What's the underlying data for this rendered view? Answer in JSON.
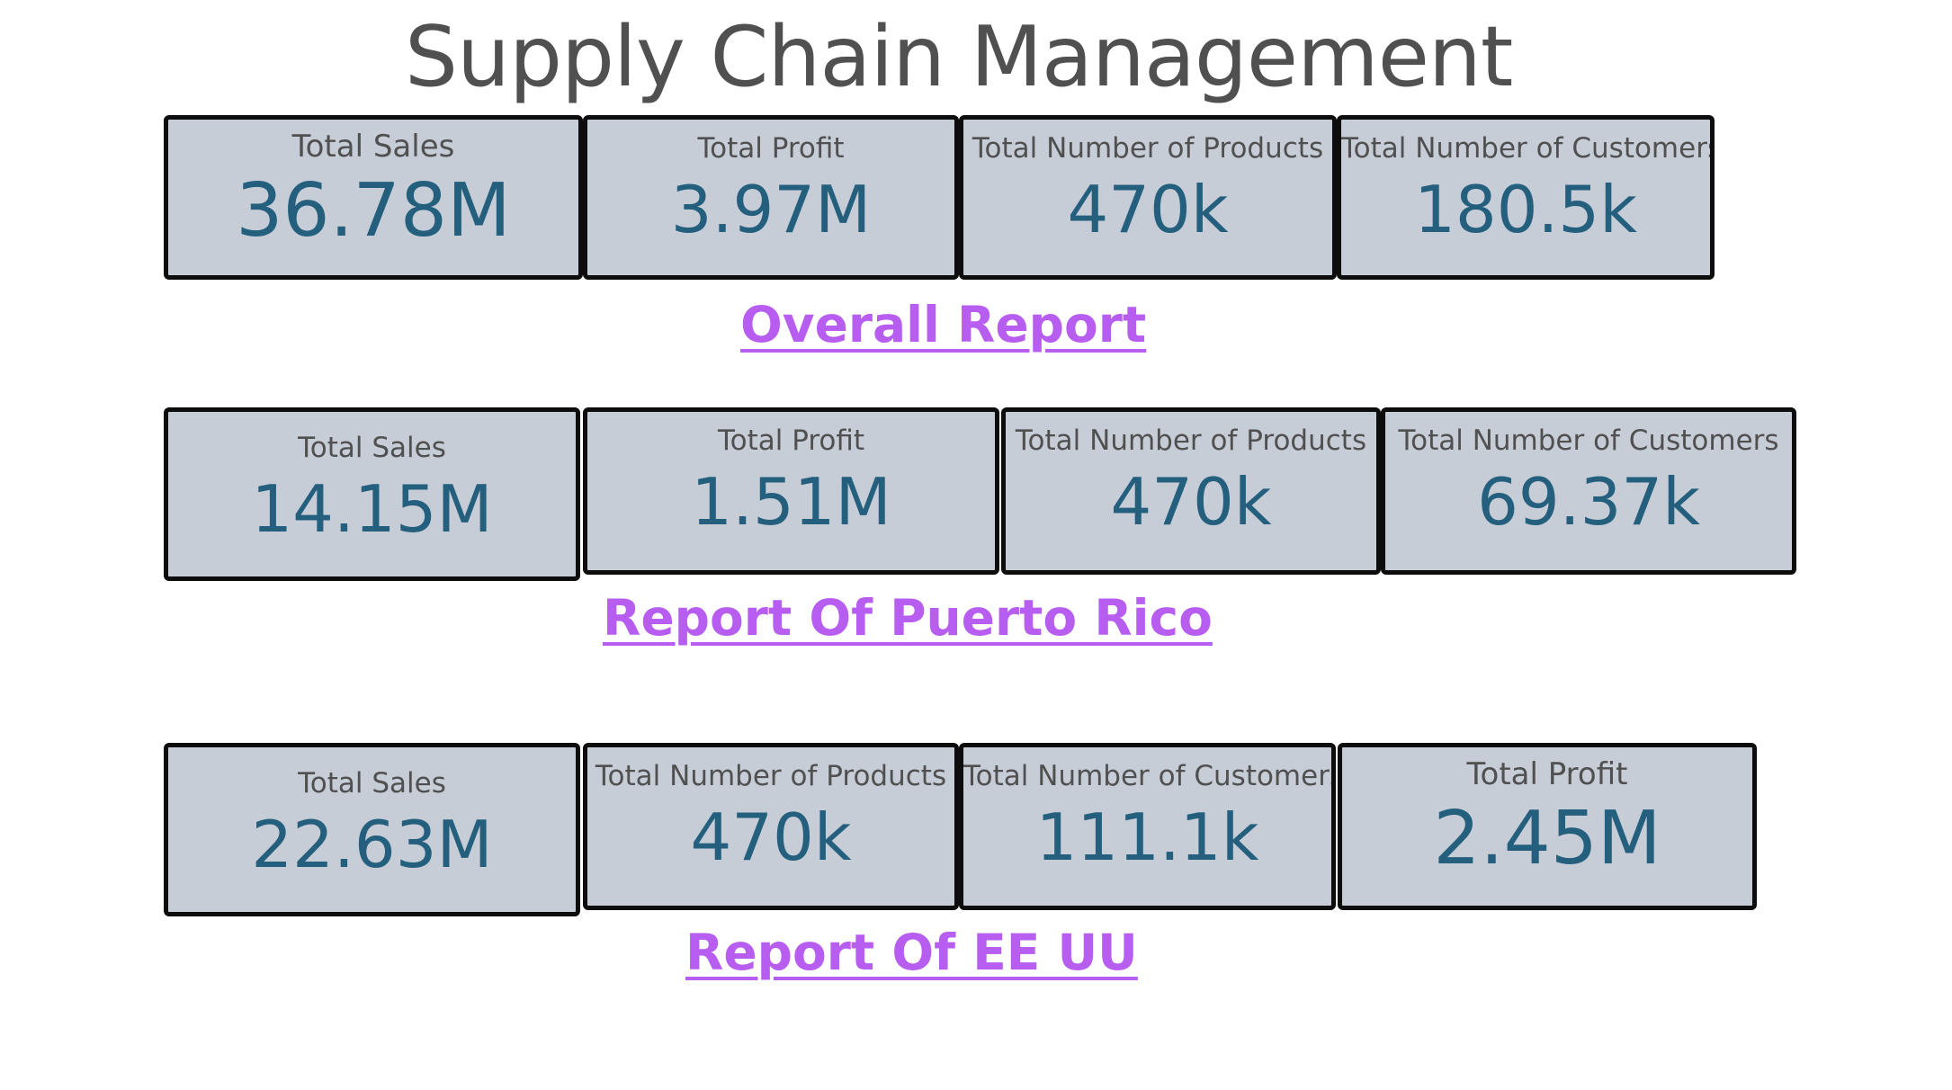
{
  "title": "Supply Chain Management",
  "overall": {
    "total_sales": {
      "label": "Total Sales",
      "value": "36.78M"
    },
    "total_profit": {
      "label": "Total Profit",
      "value": "3.97M"
    },
    "total_products": {
      "label": "Total Number of Products",
      "value": "470k"
    },
    "total_customers": {
      "label": "Total Number of Customers",
      "value": "180.5k"
    },
    "link": "Overall Report"
  },
  "puerto_rico": {
    "total_sales": {
      "label": "Total Sales",
      "value": "14.15M"
    },
    "total_profit": {
      "label": "Total Profit",
      "value": "1.51M"
    },
    "total_products": {
      "label": "Total Number of Products",
      "value": "470k"
    },
    "total_customers": {
      "label": "Total Number of Customers",
      "value": "69.37k"
    },
    "link": "Report Of Puerto Rico"
  },
  "ee_uu": {
    "total_sales": {
      "label": "Total Sales",
      "value": "22.63M"
    },
    "total_products": {
      "label": "Total Number of Products",
      "value": "470k"
    },
    "total_customers": {
      "label": "Total Number of Customers",
      "value": "111.1k"
    },
    "total_profit": {
      "label": "Total Profit",
      "value": "2.45M"
    },
    "link": "Report Of EE UU"
  },
  "colors": {
    "card_background": "#c6cdd7",
    "card_border": "#0d0d0d",
    "value_text": "#255f7e",
    "label_text": "#505050",
    "link": "#b75df0"
  }
}
